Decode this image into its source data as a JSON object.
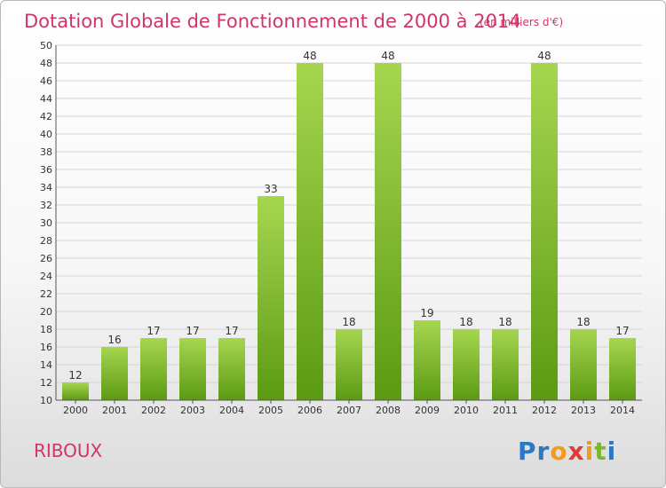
{
  "commune": "RIBOUX",
  "brand": {
    "text": "Proxiti",
    "colors": [
      "#2a79c4",
      "#2a79c4",
      "#f39a1e",
      "#e53935",
      "#f39a1e",
      "#7cb82f",
      "#2a79c4"
    ]
  },
  "chart_data": {
    "type": "bar",
    "title": "Dotation Globale de Fonctionnement de 2000 à 2014",
    "subtitle": "(en milliers d'€)",
    "xlabel": "",
    "ylabel": "",
    "categories": [
      "2000",
      "2001",
      "2002",
      "2003",
      "2004",
      "2005",
      "2006",
      "2007",
      "2008",
      "2009",
      "2010",
      "2011",
      "2012",
      "2013",
      "2014"
    ],
    "values": [
      12,
      16,
      17,
      17,
      17,
      33,
      48,
      18,
      48,
      19,
      18,
      18,
      48,
      18,
      17
    ],
    "ylim": [
      10,
      50
    ],
    "ytick_step": 2,
    "grid": true,
    "bar_color_top": "#a6d650",
    "bar_color_bottom": "#5c9a14",
    "accent": "#d0356a"
  }
}
